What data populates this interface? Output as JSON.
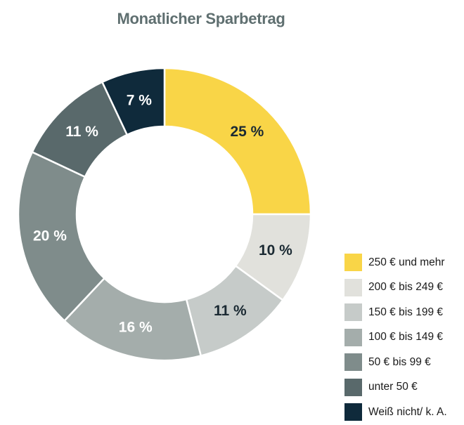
{
  "chart_data": {
    "type": "pie",
    "title": "Monatlicher Sparbetrag",
    "unit": "%",
    "legend_position": "bottom-right",
    "categories": [
      "250 € und mehr",
      "200 € bis 249 €",
      "150 € bis 199 €",
      "100 € bis 149 €",
      "50 € bis 99 €",
      "unter 50 €",
      "Weiß nicht/ k. A."
    ],
    "values": [
      25,
      10,
      11,
      16,
      20,
      11,
      7
    ],
    "labels": [
      "25 %",
      "10 %",
      "11 %",
      "16 %",
      "20 %",
      "11 %",
      "7 %"
    ],
    "colors": [
      "#f9d547",
      "#e1e1dc",
      "#c6cbc9",
      "#a4adab",
      "#7f8c8b",
      "#59696b",
      "#0f2a3b"
    ],
    "label_colors": [
      "#1b2a33",
      "#1b2a33",
      "#1b2a33",
      "#ffffff",
      "#ffffff",
      "#ffffff",
      "#ffffff"
    ]
  }
}
